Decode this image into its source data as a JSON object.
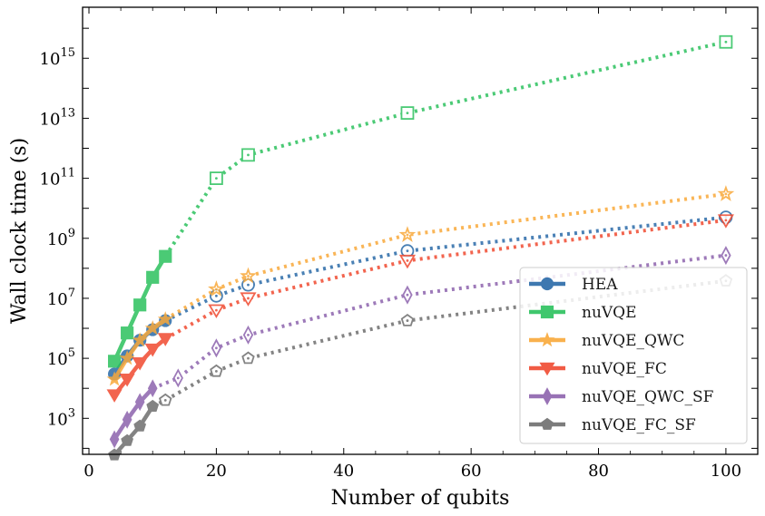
{
  "chart_data": {
    "type": "line",
    "xlabel": "Number of qubits",
    "ylabel": "Wall clock time (s)",
    "xlim": [
      -1,
      105
    ],
    "ylim_log10": [
      1.8,
      16.7
    ],
    "yscale": "log",
    "x_ticks": [
      0,
      20,
      40,
      60,
      80,
      100
    ],
    "y_ticks": [
      {
        "base": "10",
        "exp": "3",
        "value": 1000
      },
      {
        "base": "10",
        "exp": "5",
        "value": 100000
      },
      {
        "base": "10",
        "exp": "7",
        "value": 10000000
      },
      {
        "base": "10",
        "exp": "9",
        "value": 1000000000
      },
      {
        "base": "10",
        "exp": "11",
        "value": 100000000000
      },
      {
        "base": "10",
        "exp": "13",
        "value": 10000000000000
      },
      {
        "base": "10",
        "exp": "15",
        "value": 1000000000000000
      }
    ],
    "legend_position": "lower-right",
    "series": [
      {
        "name": "HEA",
        "color": "#2a6aa8",
        "marker": "circle",
        "x_filled": [
          4,
          6,
          8,
          10,
          12
        ],
        "y_filled": [
          30000,
          120000,
          400000,
          900000,
          1800000
        ],
        "x_hollow": [
          20,
          25,
          50,
          100
        ],
        "y_hollow": [
          12000000,
          28000000,
          380000000,
          5000000000
        ]
      },
      {
        "name": "nuVQE",
        "color": "#2cc15e",
        "marker": "square",
        "x_filled": [
          4,
          6,
          8,
          10,
          12
        ],
        "y_filled": [
          80000,
          700000,
          6000000,
          50000000,
          250000000
        ],
        "x_hollow": [
          20,
          25,
          50,
          100
        ],
        "y_hollow": [
          100000000000,
          600000000000,
          15000000000000,
          3500000000000000
        ]
      },
      {
        "name": "nuVQE_QWC",
        "color": "#f9a93a",
        "marker": "star",
        "x_filled": [
          4,
          6,
          8,
          10,
          12
        ],
        "y_filled": [
          20000,
          100000,
          400000,
          1000000,
          2000000
        ],
        "x_hollow": [
          20,
          25,
          50,
          100
        ],
        "y_hollow": [
          20000000,
          55000000,
          1300000000,
          30000000000
        ]
      },
      {
        "name": "nuVQE_FC",
        "color": "#f04a30",
        "marker": "triangle-down",
        "x_filled": [
          4,
          6,
          8,
          10,
          12
        ],
        "y_filled": [
          6000,
          20000,
          70000,
          200000,
          450000
        ],
        "x_hollow": [
          20,
          25,
          50,
          100
        ],
        "y_hollow": [
          4000000,
          10000000,
          180000000,
          4000000000
        ]
      },
      {
        "name": "nuVQE_QWC_SF",
        "color": "#8d63ad",
        "marker": "diamond",
        "x_filled": [
          4,
          6,
          8,
          10
        ],
        "y_filled": [
          200,
          900,
          3500,
          10000
        ],
        "x_hollow": [
          14,
          20,
          25,
          50,
          100
        ],
        "y_hollow": [
          22000,
          220000,
          600000,
          13000000,
          270000000
        ]
      },
      {
        "name": "nuVQE_FC_SF",
        "color": "#6e6e6e",
        "marker": "pentagon",
        "x_filled": [
          4,
          6,
          8,
          10
        ],
        "y_filled": [
          60,
          180,
          550,
          2500
        ],
        "x_hollow": [
          12,
          20,
          25,
          50,
          100
        ],
        "y_hollow": [
          4000,
          37000,
          100000,
          1800000,
          38000000
        ]
      }
    ]
  }
}
